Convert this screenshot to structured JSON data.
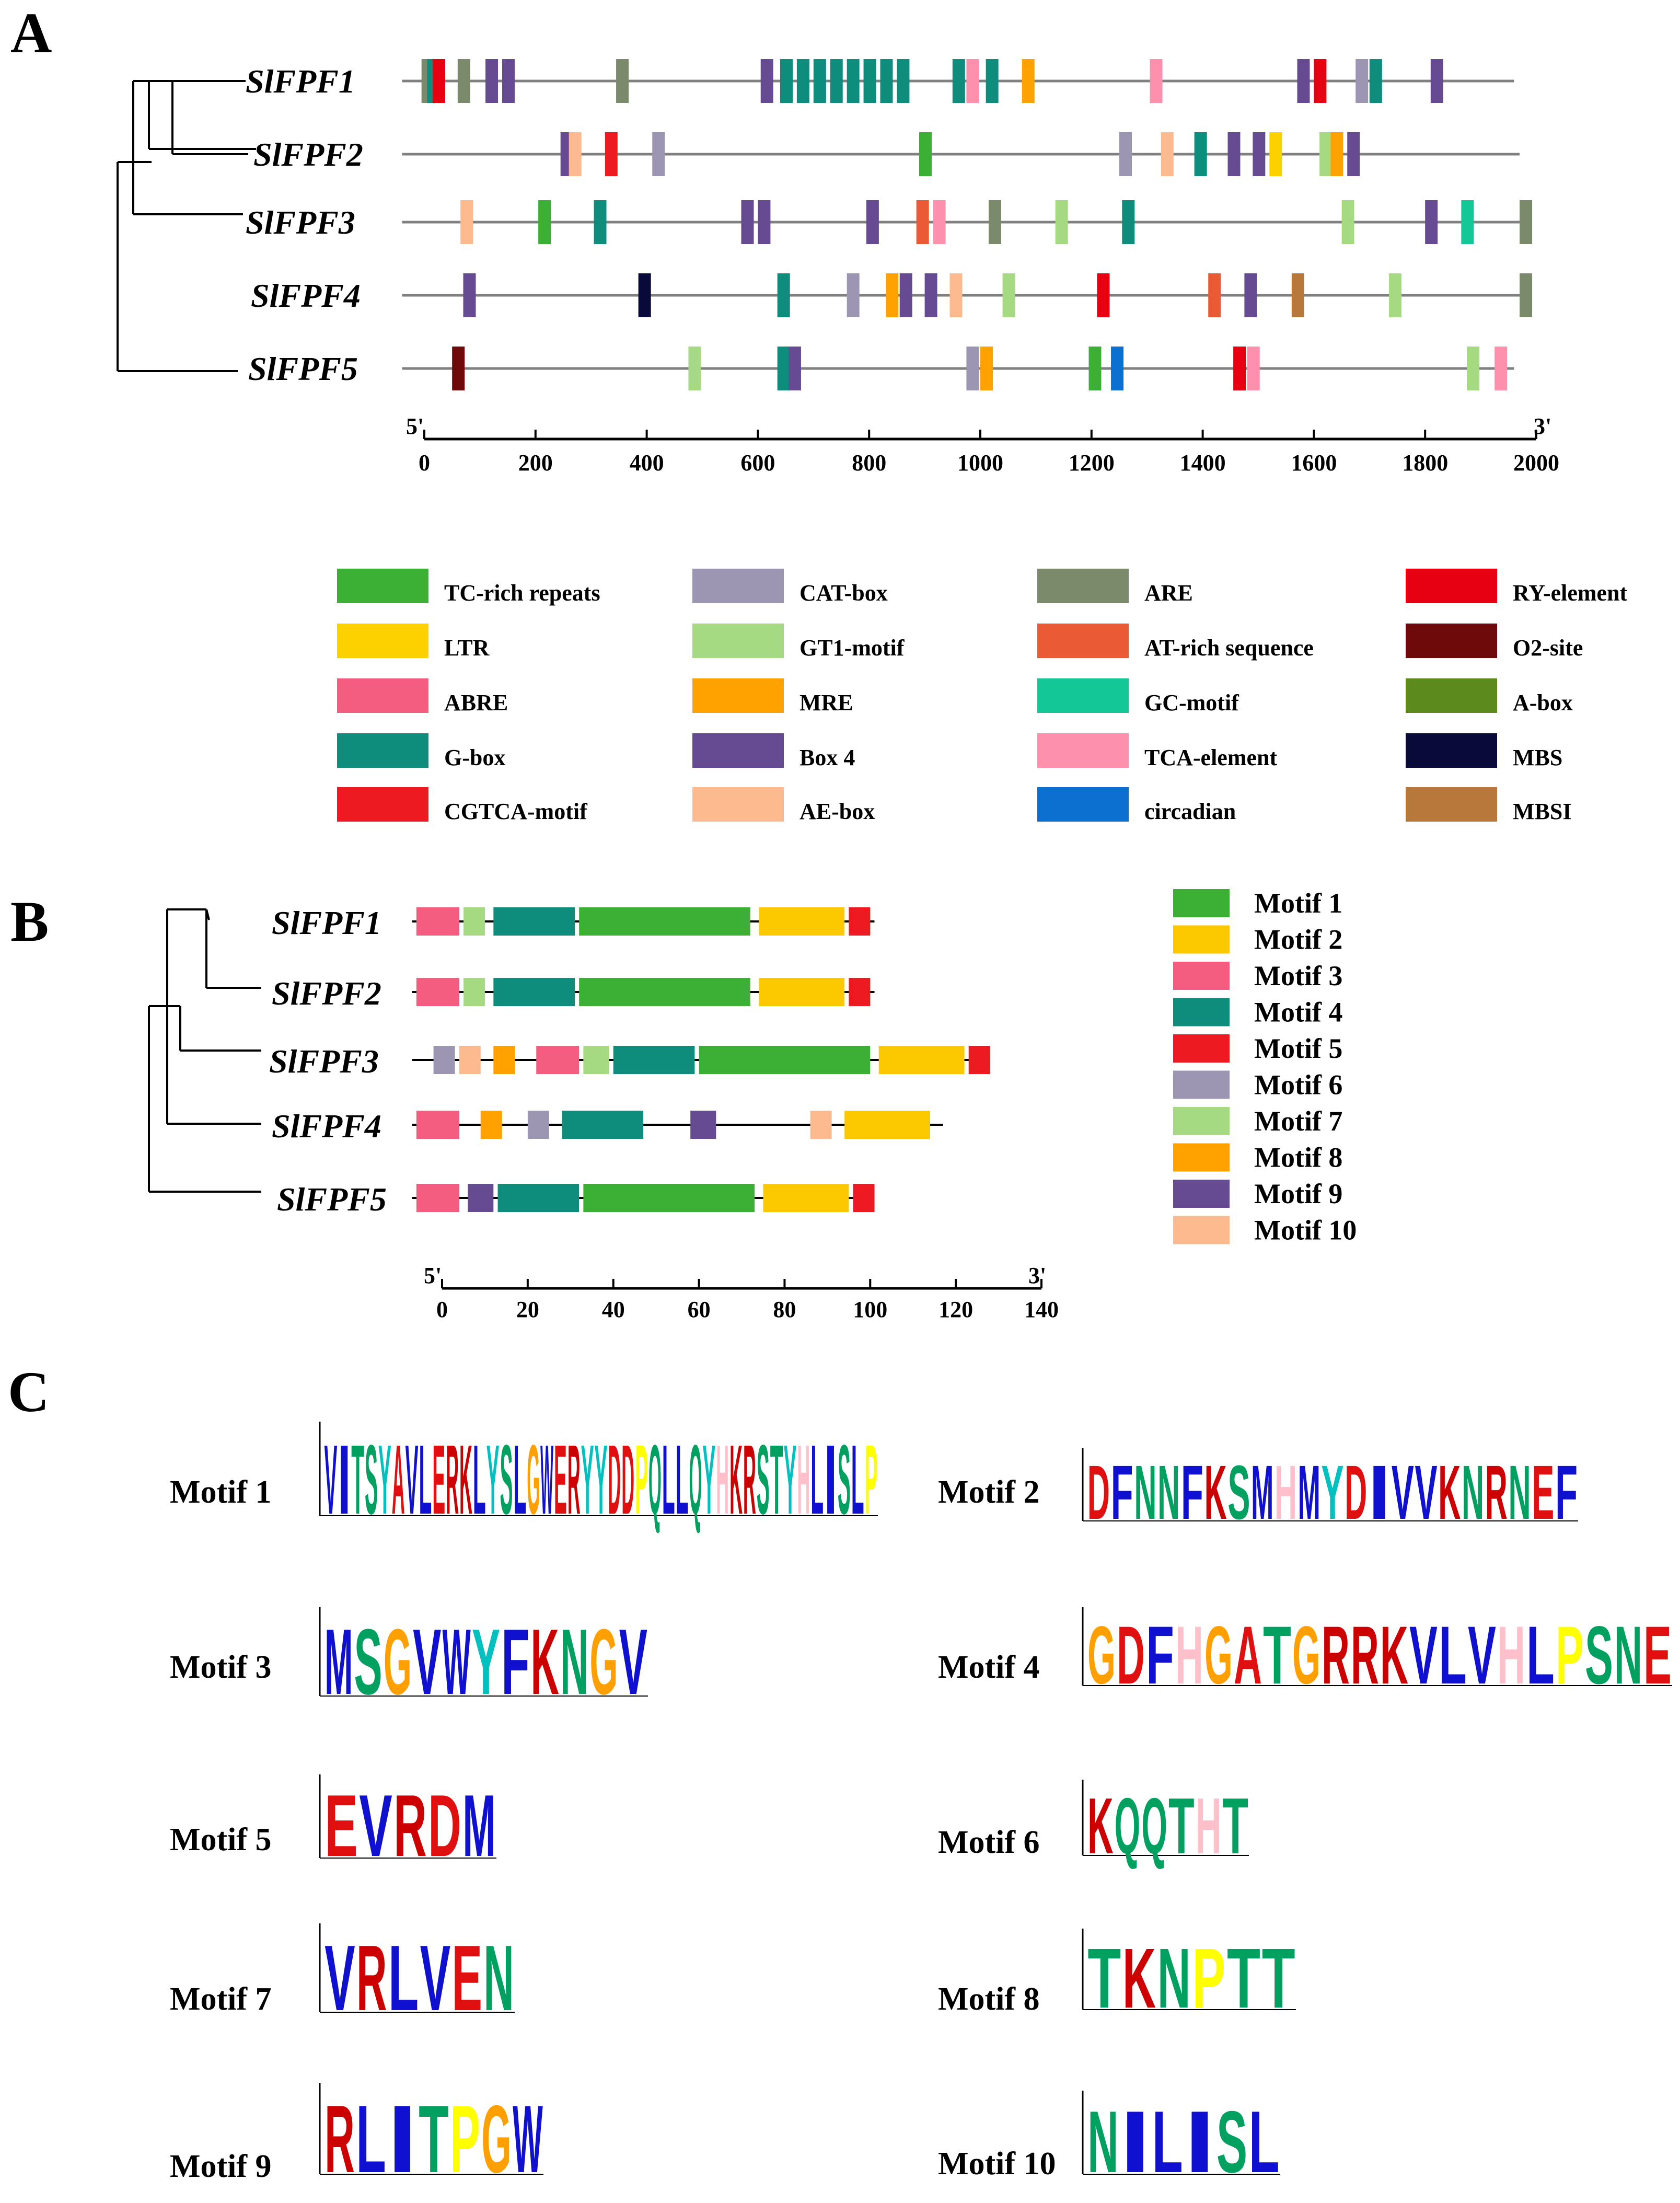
{
  "panels": {
    "a": "A",
    "b": "B",
    "c": "C"
  },
  "colors": {
    "TC-rich repeats": "#3cb034",
    "LTR": "#fdd000",
    "ABRE": "#f45d80",
    "G-box": "#0e8c7c",
    "CGTCA-motif": "#ee1a22",
    "CAT-box": "#9c96b2",
    "GT1-motif": "#a6da82",
    "MRE": "#ffa200",
    "Box 4": "#664a92",
    "AE-box": "#fdba8e",
    "ARE": "#7c8a6c",
    "AT-rich sequence": "#ea5a34",
    "GC-motif": "#14c796",
    "TCA-element": "#fd90ac",
    "circadian": "#0c70d0",
    "RY-element": "#e60012",
    "O2-site": "#6e0a0a",
    "A-box": "#5c8a1c",
    "MBS": "#0a0a3a",
    "MBSI": "#b8783c",
    "Motif 1": "#3cb034",
    "Motif 2": "#fcc800",
    "Motif 3": "#f45d80",
    "Motif 4": "#0e8c7c",
    "Motif 5": "#ee1a22",
    "Motif 6": "#9c96b2",
    "Motif 7": "#a6da82",
    "Motif 8": "#ffa200",
    "Motif 9": "#664a92",
    "Motif 10": "#fdba8e",
    "logo": {
      "A": "#e01010",
      "C": "#1010d0",
      "D": "#e01010",
      "E": "#e01010",
      "F": "#1010d0",
      "G": "#ffa000",
      "H": "#ffc0cb",
      "I": "#1010d0",
      "K": "#cc0000",
      "L": "#1010d0",
      "M": "#1010d0",
      "N": "#00a060",
      "P": "#ffff00",
      "Q": "#00a060",
      "R": "#cc0000",
      "S": "#00a060",
      "T": "#00a060",
      "V": "#1010d0",
      "W": "#1010d0",
      "Y": "#00c0c0"
    }
  },
  "panelA": {
    "genes": [
      "SlFPF1",
      "SlFPF2",
      "SlFPF3",
      "SlFPF4",
      "SlFPF5"
    ],
    "axis": {
      "min": 0,
      "max": 2000,
      "ticks": [
        0,
        200,
        400,
        600,
        800,
        1000,
        1200,
        1400,
        1600,
        1800,
        2000
      ],
      "left_label": "5'",
      "right_label": "3'"
    },
    "lengths": [
      1960,
      1970,
      1980,
      1970,
      1960
    ],
    "elements": [
      [
        [
          -5,
          "ARE"
        ],
        [
          5,
          "G-box"
        ],
        [
          15,
          "RY-element"
        ],
        [
          60,
          "ARE"
        ],
        [
          110,
          "Box 4"
        ],
        [
          140,
          "Box 4"
        ],
        [
          345,
          "ARE"
        ],
        [
          605,
          "Box 4"
        ],
        [
          640,
          "G-box"
        ],
        [
          670,
          "G-box"
        ],
        [
          700,
          "G-box"
        ],
        [
          730,
          "G-box"
        ],
        [
          760,
          "G-box"
        ],
        [
          790,
          "G-box"
        ],
        [
          820,
          "G-box"
        ],
        [
          850,
          "G-box"
        ],
        [
          950,
          "G-box"
        ],
        [
          975,
          "TCA-element"
        ],
        [
          1010,
          "G-box"
        ],
        [
          1075,
          "MRE"
        ],
        [
          1305,
          "TCA-element"
        ],
        [
          1570,
          "Box 4"
        ],
        [
          1600,
          "RY-element"
        ],
        [
          1675,
          "CAT-box"
        ],
        [
          1700,
          "G-box"
        ],
        [
          1810,
          "Box 4"
        ]
      ],
      [
        [
          245,
          "Box 4"
        ],
        [
          260,
          "AE-box"
        ],
        [
          325,
          "CGTCA-motif"
        ],
        [
          410,
          "CAT-box"
        ],
        [
          890,
          "TC-rich repeats"
        ],
        [
          1250,
          "CAT-box"
        ],
        [
          1325,
          "AE-box"
        ],
        [
          1385,
          "G-box"
        ],
        [
          1445,
          "Box 4"
        ],
        [
          1490,
          "Box 4"
        ],
        [
          1520,
          "LTR"
        ],
        [
          1610,
          "GT1-motif"
        ],
        [
          1630,
          "MRE"
        ],
        [
          1660,
          "Box 4"
        ]
      ],
      [
        [
          65,
          "AE-box"
        ],
        [
          205,
          "TC-rich repeats"
        ],
        [
          305,
          "G-box"
        ],
        [
          570,
          "Box 4"
        ],
        [
          600,
          "Box 4"
        ],
        [
          795,
          "Box 4"
        ],
        [
          885,
          "AT-rich sequence"
        ],
        [
          915,
          "TCA-element"
        ],
        [
          1015,
          "ARE"
        ],
        [
          1135,
          "GT1-motif"
        ],
        [
          1255,
          "G-box"
        ],
        [
          1650,
          "GT1-motif"
        ],
        [
          1800,
          "Box 4"
        ],
        [
          1865,
          "GC-motif"
        ],
        [
          1970,
          "ARE"
        ]
      ],
      [
        [
          70,
          "Box 4"
        ],
        [
          385,
          "MBS"
        ],
        [
          635,
          "G-box"
        ],
        [
          760,
          "CAT-box"
        ],
        [
          830,
          "MRE"
        ],
        [
          855,
          "Box 4"
        ],
        [
          900,
          "Box 4"
        ],
        [
          945,
          "AE-box"
        ],
        [
          1040,
          "GT1-motif"
        ],
        [
          1210,
          "RY-element"
        ],
        [
          1410,
          "AT-rich sequence"
        ],
        [
          1475,
          "Box 4"
        ],
        [
          1560,
          "MBSI"
        ],
        [
          1735,
          "GT1-motif"
        ],
        [
          1970,
          "ARE"
        ]
      ],
      [
        [
          50,
          "O2-site"
        ],
        [
          475,
          "GT1-motif"
        ],
        [
          635,
          "G-box"
        ],
        [
          655,
          "Box 4"
        ],
        [
          975,
          "CAT-box"
        ],
        [
          1000,
          "MRE"
        ],
        [
          1195,
          "TC-rich repeats"
        ],
        [
          1235,
          "circadian"
        ],
        [
          1455,
          "RY-element"
        ],
        [
          1480,
          "TCA-element"
        ],
        [
          1875,
          "GT1-motif"
        ],
        [
          1925,
          "TCA-element"
        ]
      ]
    ]
  },
  "legendA": [
    [
      "TC-rich repeats",
      "CAT-box",
      "ARE",
      "RY-element"
    ],
    [
      "LTR",
      "GT1-motif",
      "AT-rich sequence",
      "O2-site"
    ],
    [
      "ABRE",
      "MRE",
      "GC-motif",
      "A-box"
    ],
    [
      "G-box",
      "Box 4",
      "TCA-element",
      "MBS"
    ],
    [
      "CGTCA-motif",
      "AE-box",
      "circadian",
      "MBSI"
    ]
  ],
  "panelB": {
    "genes": [
      "SlFPF1",
      "SlFPF2",
      "SlFPF3",
      "SlFPF4",
      "SlFPF5"
    ],
    "axis": {
      "min": 0,
      "max": 140,
      "ticks": [
        0,
        20,
        40,
        60,
        80,
        100,
        120,
        140
      ],
      "left_label": "5'",
      "right_label": "3'"
    },
    "lengths": [
      101,
      101,
      128,
      117,
      101
    ],
    "motifs": [
      [
        [
          -6,
          4,
          "Motif 3"
        ],
        [
          5,
          10,
          "Motif 7"
        ],
        [
          12,
          31,
          "Motif 4"
        ],
        [
          32,
          72,
          "Motif 1"
        ],
        [
          74,
          94,
          "Motif 2"
        ],
        [
          95,
          100,
          "Motif 5"
        ]
      ],
      [
        [
          -6,
          4,
          "Motif 3"
        ],
        [
          5,
          10,
          "Motif 7"
        ],
        [
          12,
          31,
          "Motif 4"
        ],
        [
          32,
          72,
          "Motif 1"
        ],
        [
          74,
          94,
          "Motif 2"
        ],
        [
          95,
          100,
          "Motif 5"
        ]
      ],
      [
        [
          -2,
          3,
          "Motif 6"
        ],
        [
          4,
          9,
          "Motif 10"
        ],
        [
          12,
          17,
          "Motif 8"
        ],
        [
          22,
          32,
          "Motif 3"
        ],
        [
          33,
          39,
          "Motif 7"
        ],
        [
          40,
          59,
          "Motif 4"
        ],
        [
          60,
          100,
          "Motif 1"
        ],
        [
          102,
          122,
          "Motif 2"
        ],
        [
          123,
          128,
          "Motif 5"
        ]
      ],
      [
        [
          -6,
          4,
          "Motif 3"
        ],
        [
          9,
          14,
          "Motif 8"
        ],
        [
          20,
          25,
          "Motif 6"
        ],
        [
          28,
          47,
          "Motif 4"
        ],
        [
          58,
          64,
          "Motif 9"
        ],
        [
          86,
          91,
          "Motif 10"
        ],
        [
          94,
          114,
          "Motif 2"
        ]
      ],
      [
        [
          -6,
          4,
          "Motif 3"
        ],
        [
          6,
          12,
          "Motif 9"
        ],
        [
          13,
          32,
          "Motif 4"
        ],
        [
          33,
          73,
          "Motif 1"
        ],
        [
          75,
          95,
          "Motif 2"
        ],
        [
          96,
          101,
          "Motif 5"
        ]
      ]
    ]
  },
  "legendB": [
    "Motif 1",
    "Motif 2",
    "Motif 3",
    "Motif 4",
    "Motif 5",
    "Motif 6",
    "Motif 7",
    "Motif 8",
    "Motif 9",
    "Motif 10"
  ],
  "panelC": {
    "logos": [
      {
        "name": "Motif 1",
        "letters": "VITSYAVLERKLYSLGWERYYDDPQLLQYHKRSTYHLISLP"
      },
      {
        "name": "Motif 2",
        "letters": "DFNNFKSMHMYDIVVKNRNEF"
      },
      {
        "name": "Motif 3",
        "letters": "MSGVWYFKNGV"
      },
      {
        "name": "Motif 4",
        "letters": "GDFHGATGRRKVLVHLPSNE"
      },
      {
        "name": "Motif 5",
        "letters": "EVRDM"
      },
      {
        "name": "Motif 6",
        "letters": "KQQTHT"
      },
      {
        "name": "Motif 7",
        "letters": "VRLVEN"
      },
      {
        "name": "Motif 8",
        "letters": "TKNPTT"
      },
      {
        "name": "Motif 9",
        "letters": "RLITPGW"
      },
      {
        "name": "Motif 10",
        "letters": "NILISL"
      }
    ]
  }
}
